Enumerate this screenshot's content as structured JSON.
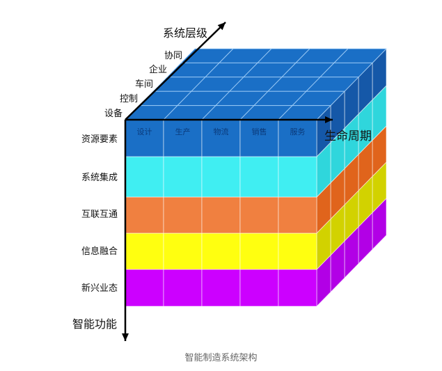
{
  "axes": {
    "vertical": "智能功能",
    "horizontal": "生命周期",
    "diagonal": "系统层级"
  },
  "system_levels": [
    "设备",
    "控制",
    "车间",
    "企业",
    "协同"
  ],
  "lifecycle": [
    "设计",
    "生产",
    "物流",
    "销售",
    "服务"
  ],
  "layers": [
    {
      "label": "资源要素",
      "front": "#1a6fc6",
      "side": "#1558a8",
      "top": "#1a6fc6"
    },
    {
      "label": "系统集成",
      "front": "#40eef2",
      "side": "#2fd6dc"
    },
    {
      "label": "互联互通",
      "front": "#f08040",
      "side": "#e0641c"
    },
    {
      "label": "信息融合",
      "front": "#ffff10",
      "side": "#d2d200"
    },
    {
      "label": "新兴业态",
      "front": "#cc00ff",
      "side": "#b200e6"
    }
  ],
  "caption": "智能制造系统架构"
}
